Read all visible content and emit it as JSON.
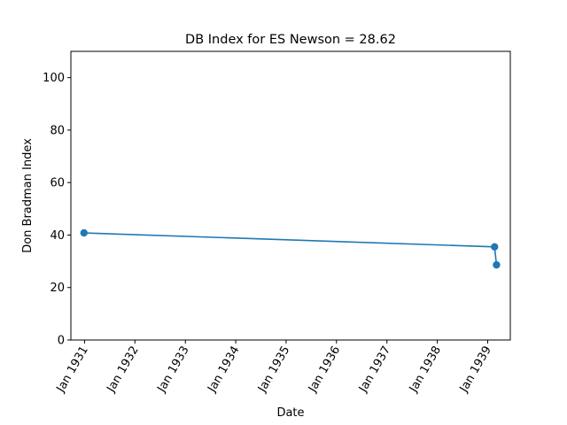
{
  "chart_data": {
    "type": "line",
    "title": "DB Index for ES Newson = 28.62",
    "xlabel": "Date",
    "ylabel": "Don Bradman Index",
    "ylim": [
      0,
      110
    ],
    "xlim": [
      "1930-09-24",
      "1939-06-14"
    ],
    "y_ticks": [
      0,
      20,
      40,
      60,
      80,
      100
    ],
    "x_ticks": [
      {
        "date": "1931-01-01",
        "label": "Jan 1931"
      },
      {
        "date": "1932-01-01",
        "label": "Jan 1932"
      },
      {
        "date": "1933-01-01",
        "label": "Jan 1933"
      },
      {
        "date": "1934-01-01",
        "label": "Jan 1934"
      },
      {
        "date": "1935-01-01",
        "label": "Jan 1935"
      },
      {
        "date": "1936-01-01",
        "label": "Jan 1936"
      },
      {
        "date": "1937-01-01",
        "label": "Jan 1937"
      },
      {
        "date": "1938-01-01",
        "label": "Jan 1938"
      },
      {
        "date": "1939-01-01",
        "label": "Jan 1939"
      }
    ],
    "series": [
      {
        "color": "#1f77b4",
        "marker": "circle",
        "points": [
          {
            "x": "1930-12-28",
            "y": 40.8
          },
          {
            "x": "1939-02-20",
            "y": 35.5
          },
          {
            "x": "1939-03-06",
            "y": 28.62
          }
        ]
      }
    ],
    "grid": false,
    "legend": "none"
  }
}
